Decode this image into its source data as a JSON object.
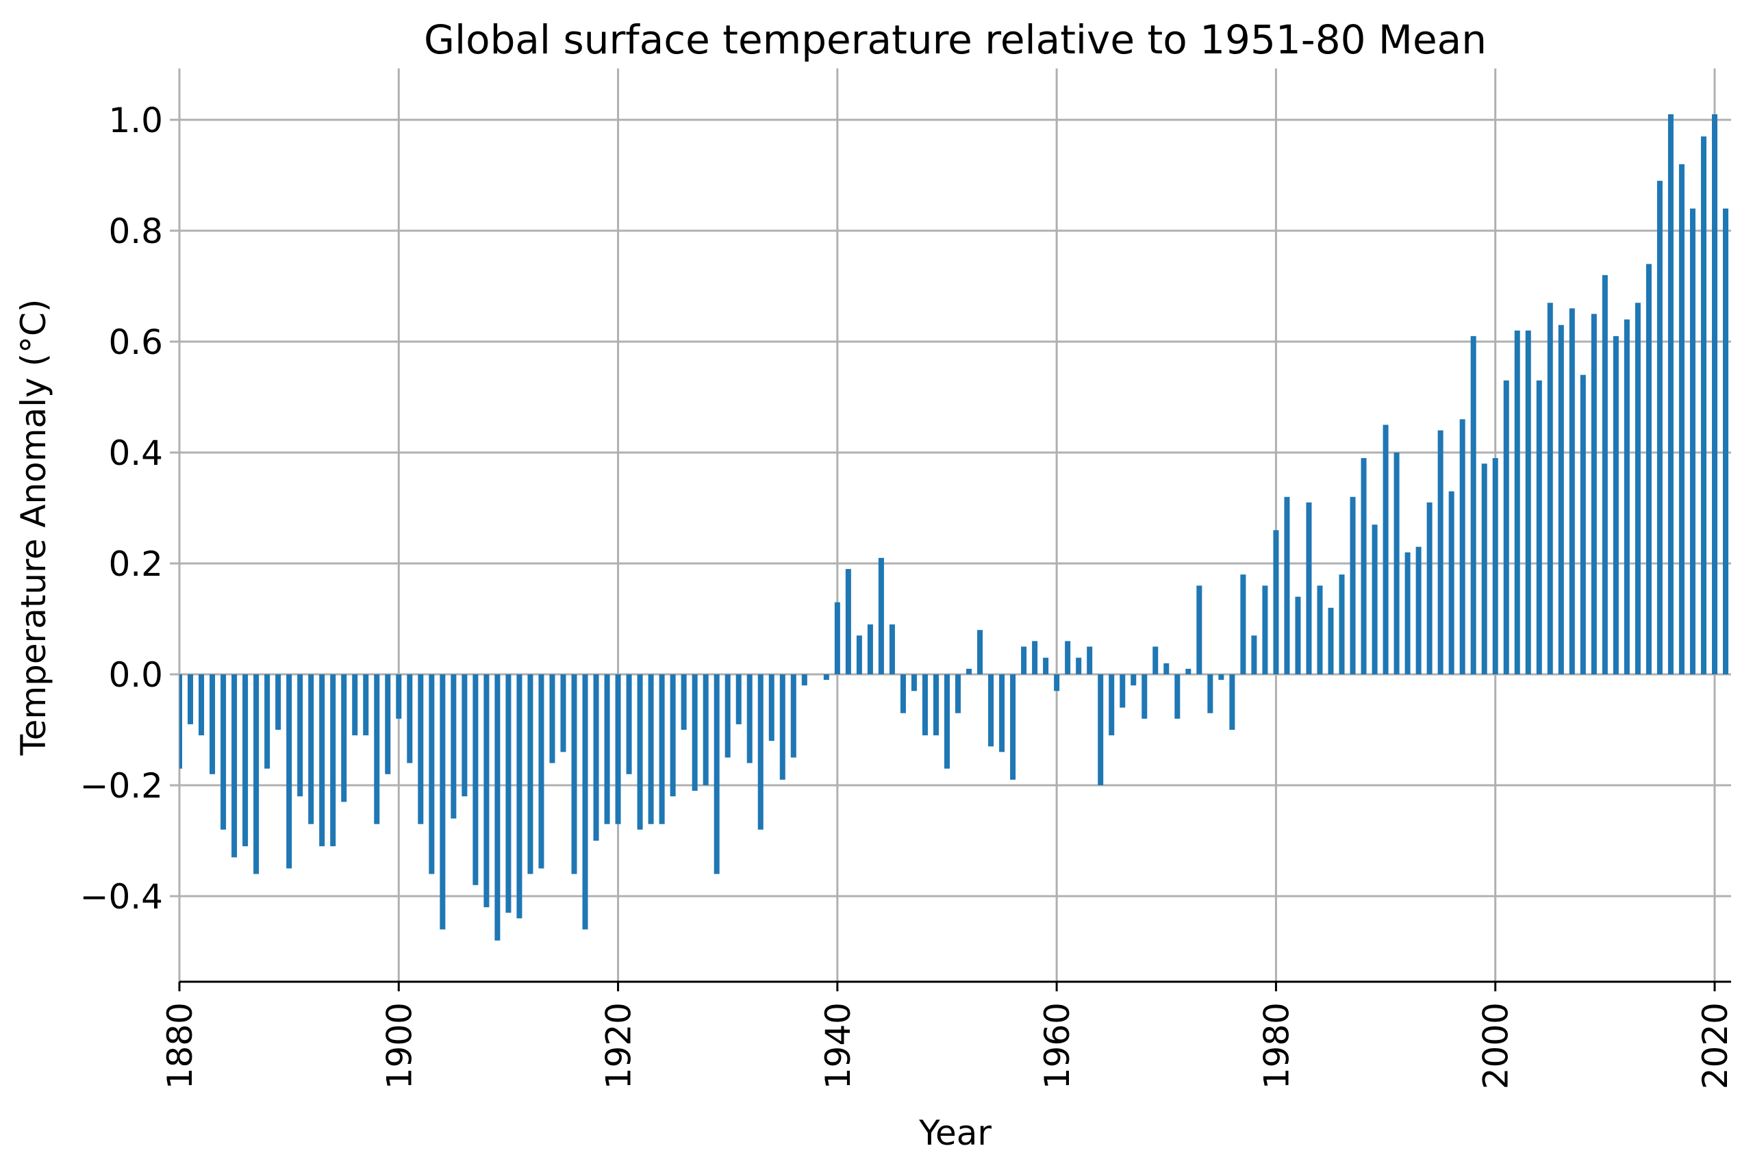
{
  "chart_data": {
    "type": "bar",
    "title": "Global surface temperature relative to 1951-80 Mean",
    "xlabel": "Year",
    "ylabel": "Temperature Anomaly (°C)",
    "bar_color": "#1f77b4",
    "grid": true,
    "ylim": [
      -0.555,
      1.085
    ],
    "xlim": [
      1880,
      2021.5
    ],
    "x_ticks": [
      1880,
      1900,
      1920,
      1940,
      1960,
      1980,
      2000,
      2020
    ],
    "x_tick_labels": [
      "1880",
      "1900",
      "1920",
      "1940",
      "1960",
      "1980",
      "2000",
      "2020"
    ],
    "y_ticks": [
      -0.4,
      -0.2,
      0.0,
      0.2,
      0.4,
      0.6,
      0.8,
      1.0
    ],
    "y_tick_labels": [
      "−0.4",
      "−0.2",
      "0.0",
      "0.2",
      "0.4",
      "0.6",
      "0.8",
      "1.0"
    ],
    "x_start": 1880,
    "values": [
      -0.17,
      -0.09,
      -0.11,
      -0.18,
      -0.28,
      -0.33,
      -0.31,
      -0.36,
      -0.17,
      -0.1,
      -0.35,
      -0.22,
      -0.27,
      -0.31,
      -0.31,
      -0.23,
      -0.11,
      -0.11,
      -0.27,
      -0.18,
      -0.08,
      -0.16,
      -0.27,
      -0.36,
      -0.46,
      -0.26,
      -0.22,
      -0.38,
      -0.42,
      -0.48,
      -0.43,
      -0.44,
      -0.36,
      -0.35,
      -0.16,
      -0.14,
      -0.36,
      -0.46,
      -0.3,
      -0.27,
      -0.27,
      -0.18,
      -0.28,
      -0.27,
      -0.27,
      -0.22,
      -0.1,
      -0.21,
      -0.2,
      -0.36,
      -0.15,
      -0.09,
      -0.16,
      -0.28,
      -0.12,
      -0.19,
      -0.15,
      -0.02,
      0.0,
      -0.01,
      0.13,
      0.19,
      0.07,
      0.09,
      0.21,
      0.09,
      -0.07,
      -0.03,
      -0.11,
      -0.11,
      -0.17,
      -0.07,
      0.01,
      0.08,
      -0.13,
      -0.14,
      -0.19,
      0.05,
      0.06,
      0.03,
      -0.03,
      0.06,
      0.03,
      0.05,
      -0.2,
      -0.11,
      -0.06,
      -0.02,
      -0.08,
      0.05,
      0.02,
      -0.08,
      0.01,
      0.16,
      -0.07,
      -0.01,
      -0.1,
      0.18,
      0.07,
      0.16,
      0.26,
      0.32,
      0.14,
      0.31,
      0.16,
      0.12,
      0.18,
      0.32,
      0.39,
      0.27,
      0.45,
      0.4,
      0.22,
      0.23,
      0.31,
      0.44,
      0.33,
      0.46,
      0.61,
      0.38,
      0.39,
      0.53,
      0.62,
      0.62,
      0.53,
      0.67,
      0.63,
      0.66,
      0.54,
      0.65,
      0.72,
      0.61,
      0.64,
      0.67,
      0.74,
      0.89,
      1.01,
      0.92,
      0.84,
      0.97,
      1.01,
      0.84
    ]
  }
}
